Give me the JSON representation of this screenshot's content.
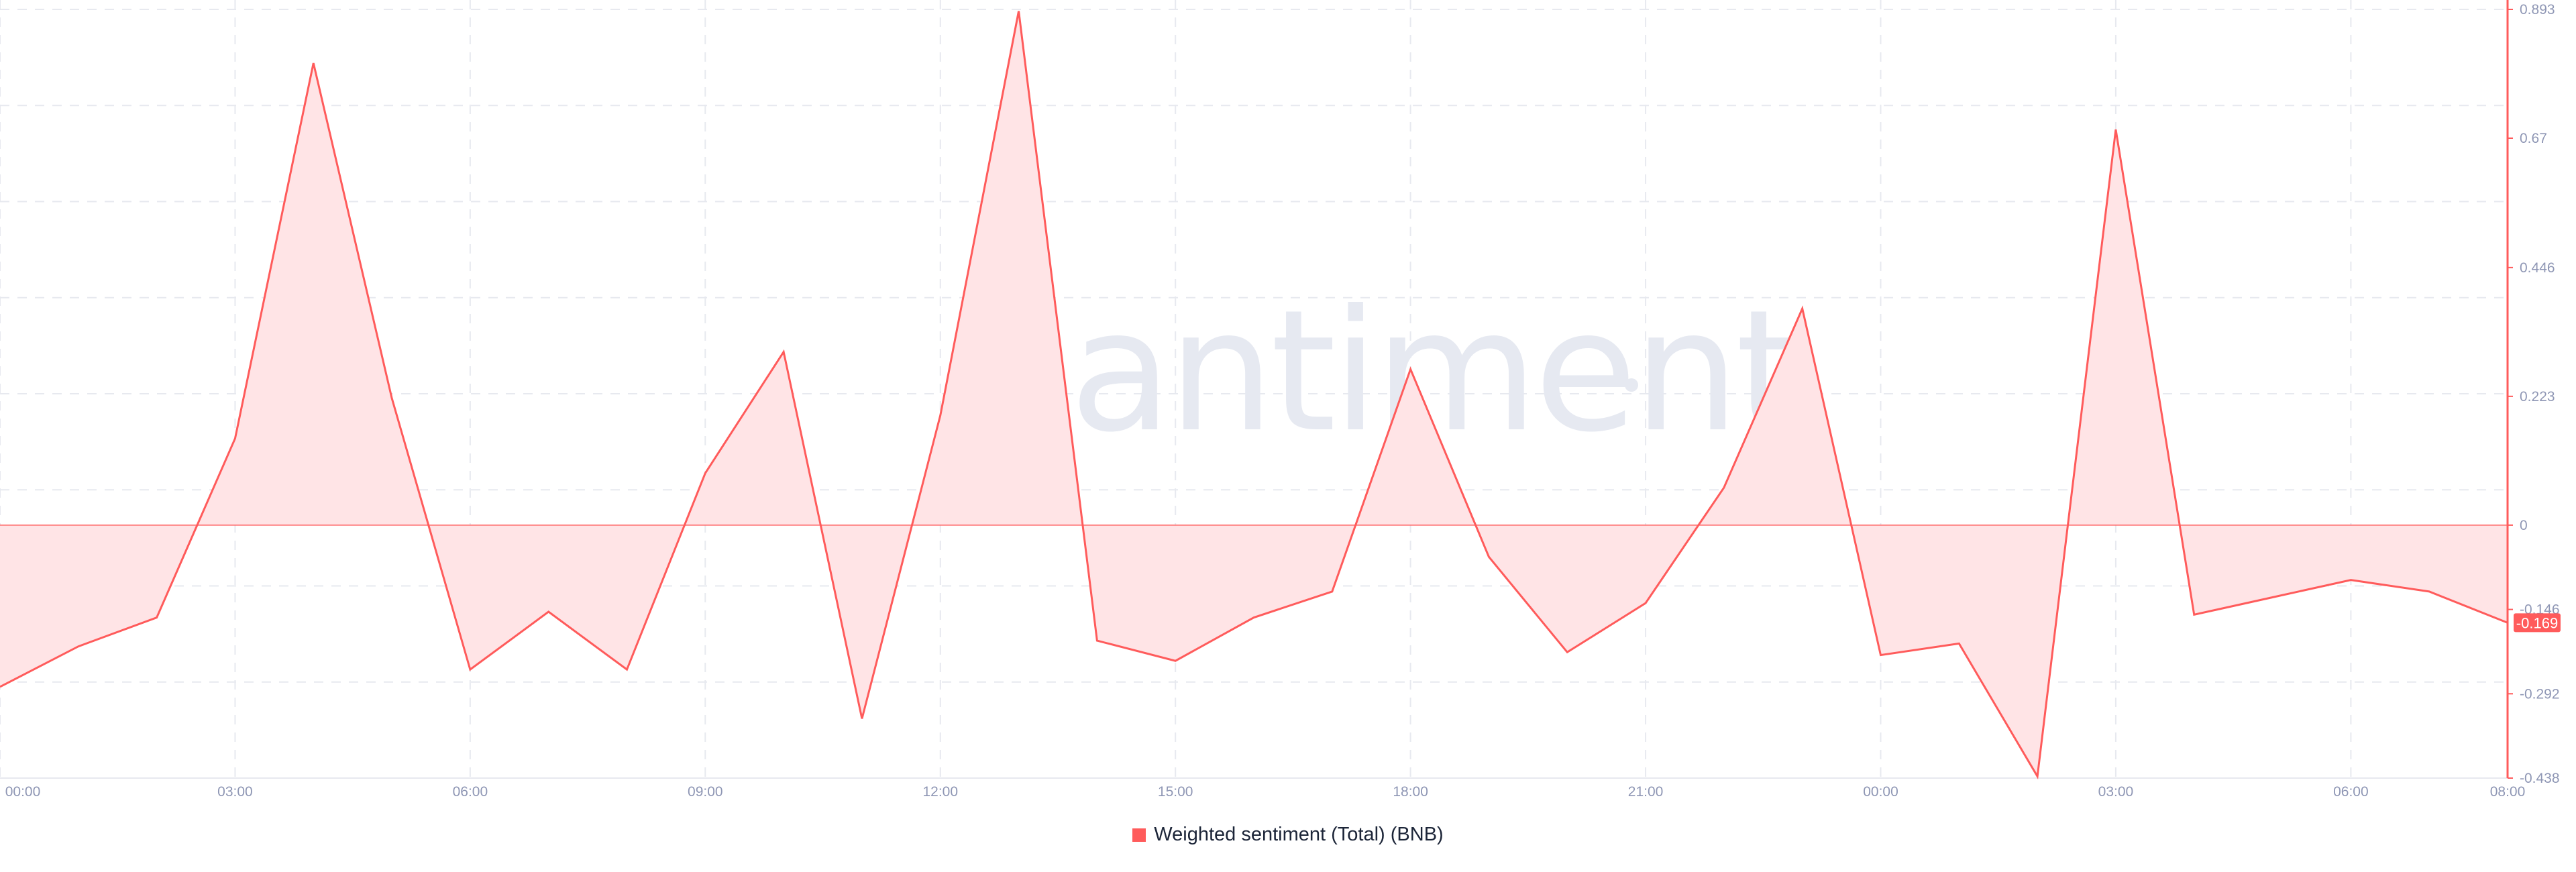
{
  "watermark_text": "santiment",
  "colors": {
    "series": "#ff5b5b",
    "area_fill": "#ffe4e6",
    "badge_bg": "#ff5b5b",
    "badge_text": "#ffffff",
    "grid": "#e7e9ef",
    "tick_text": "#8e96b4",
    "watermark": "#e6e9f1"
  },
  "chart_data": {
    "type": "area",
    "title": "",
    "xlabel": "",
    "ylabel": "",
    "x": [
      "00:00",
      "01:00",
      "02:00",
      "03:00",
      "04:00",
      "05:00",
      "06:00",
      "07:00",
      "08:00",
      "09:00",
      "10:00",
      "11:00",
      "12:00",
      "13:00",
      "14:00",
      "15:00",
      "16:00",
      "17:00",
      "18:00",
      "19:00",
      "20:00",
      "21:00",
      "22:00",
      "23:00",
      "00:00",
      "01:00",
      "02:00",
      "03:00",
      "04:00",
      "05:00",
      "06:00",
      "07:00",
      "08:00"
    ],
    "x_ticks": [
      "00:00",
      "03:00",
      "06:00",
      "09:00",
      "12:00",
      "15:00",
      "18:00",
      "21:00",
      "00:00",
      "03:00",
      "06:00",
      "08:00"
    ],
    "y_ticks": [
      "0.893",
      "0.67",
      "0.446",
      "0.223",
      "0",
      "-0.146",
      "-0.292",
      "-0.438"
    ],
    "ylim": [
      -0.438,
      0.893
    ],
    "grid": true,
    "legend_position": "bottom-center",
    "last_value_badge": "-0.169",
    "series": [
      {
        "name": "Weighted sentiment (Total) (BNB)",
        "values": [
          -0.28,
          -0.21,
          -0.16,
          0.15,
          0.8,
          0.22,
          -0.25,
          -0.15,
          -0.25,
          0.09,
          0.3,
          -0.335,
          0.19,
          0.89,
          -0.2,
          -0.235,
          -0.16,
          -0.115,
          0.27,
          -0.055,
          -0.22,
          -0.135,
          0.065,
          0.375,
          -0.225,
          -0.205,
          -0.435,
          0.685,
          -0.155,
          -0.125,
          -0.095,
          -0.115,
          -0.169
        ]
      }
    ]
  }
}
